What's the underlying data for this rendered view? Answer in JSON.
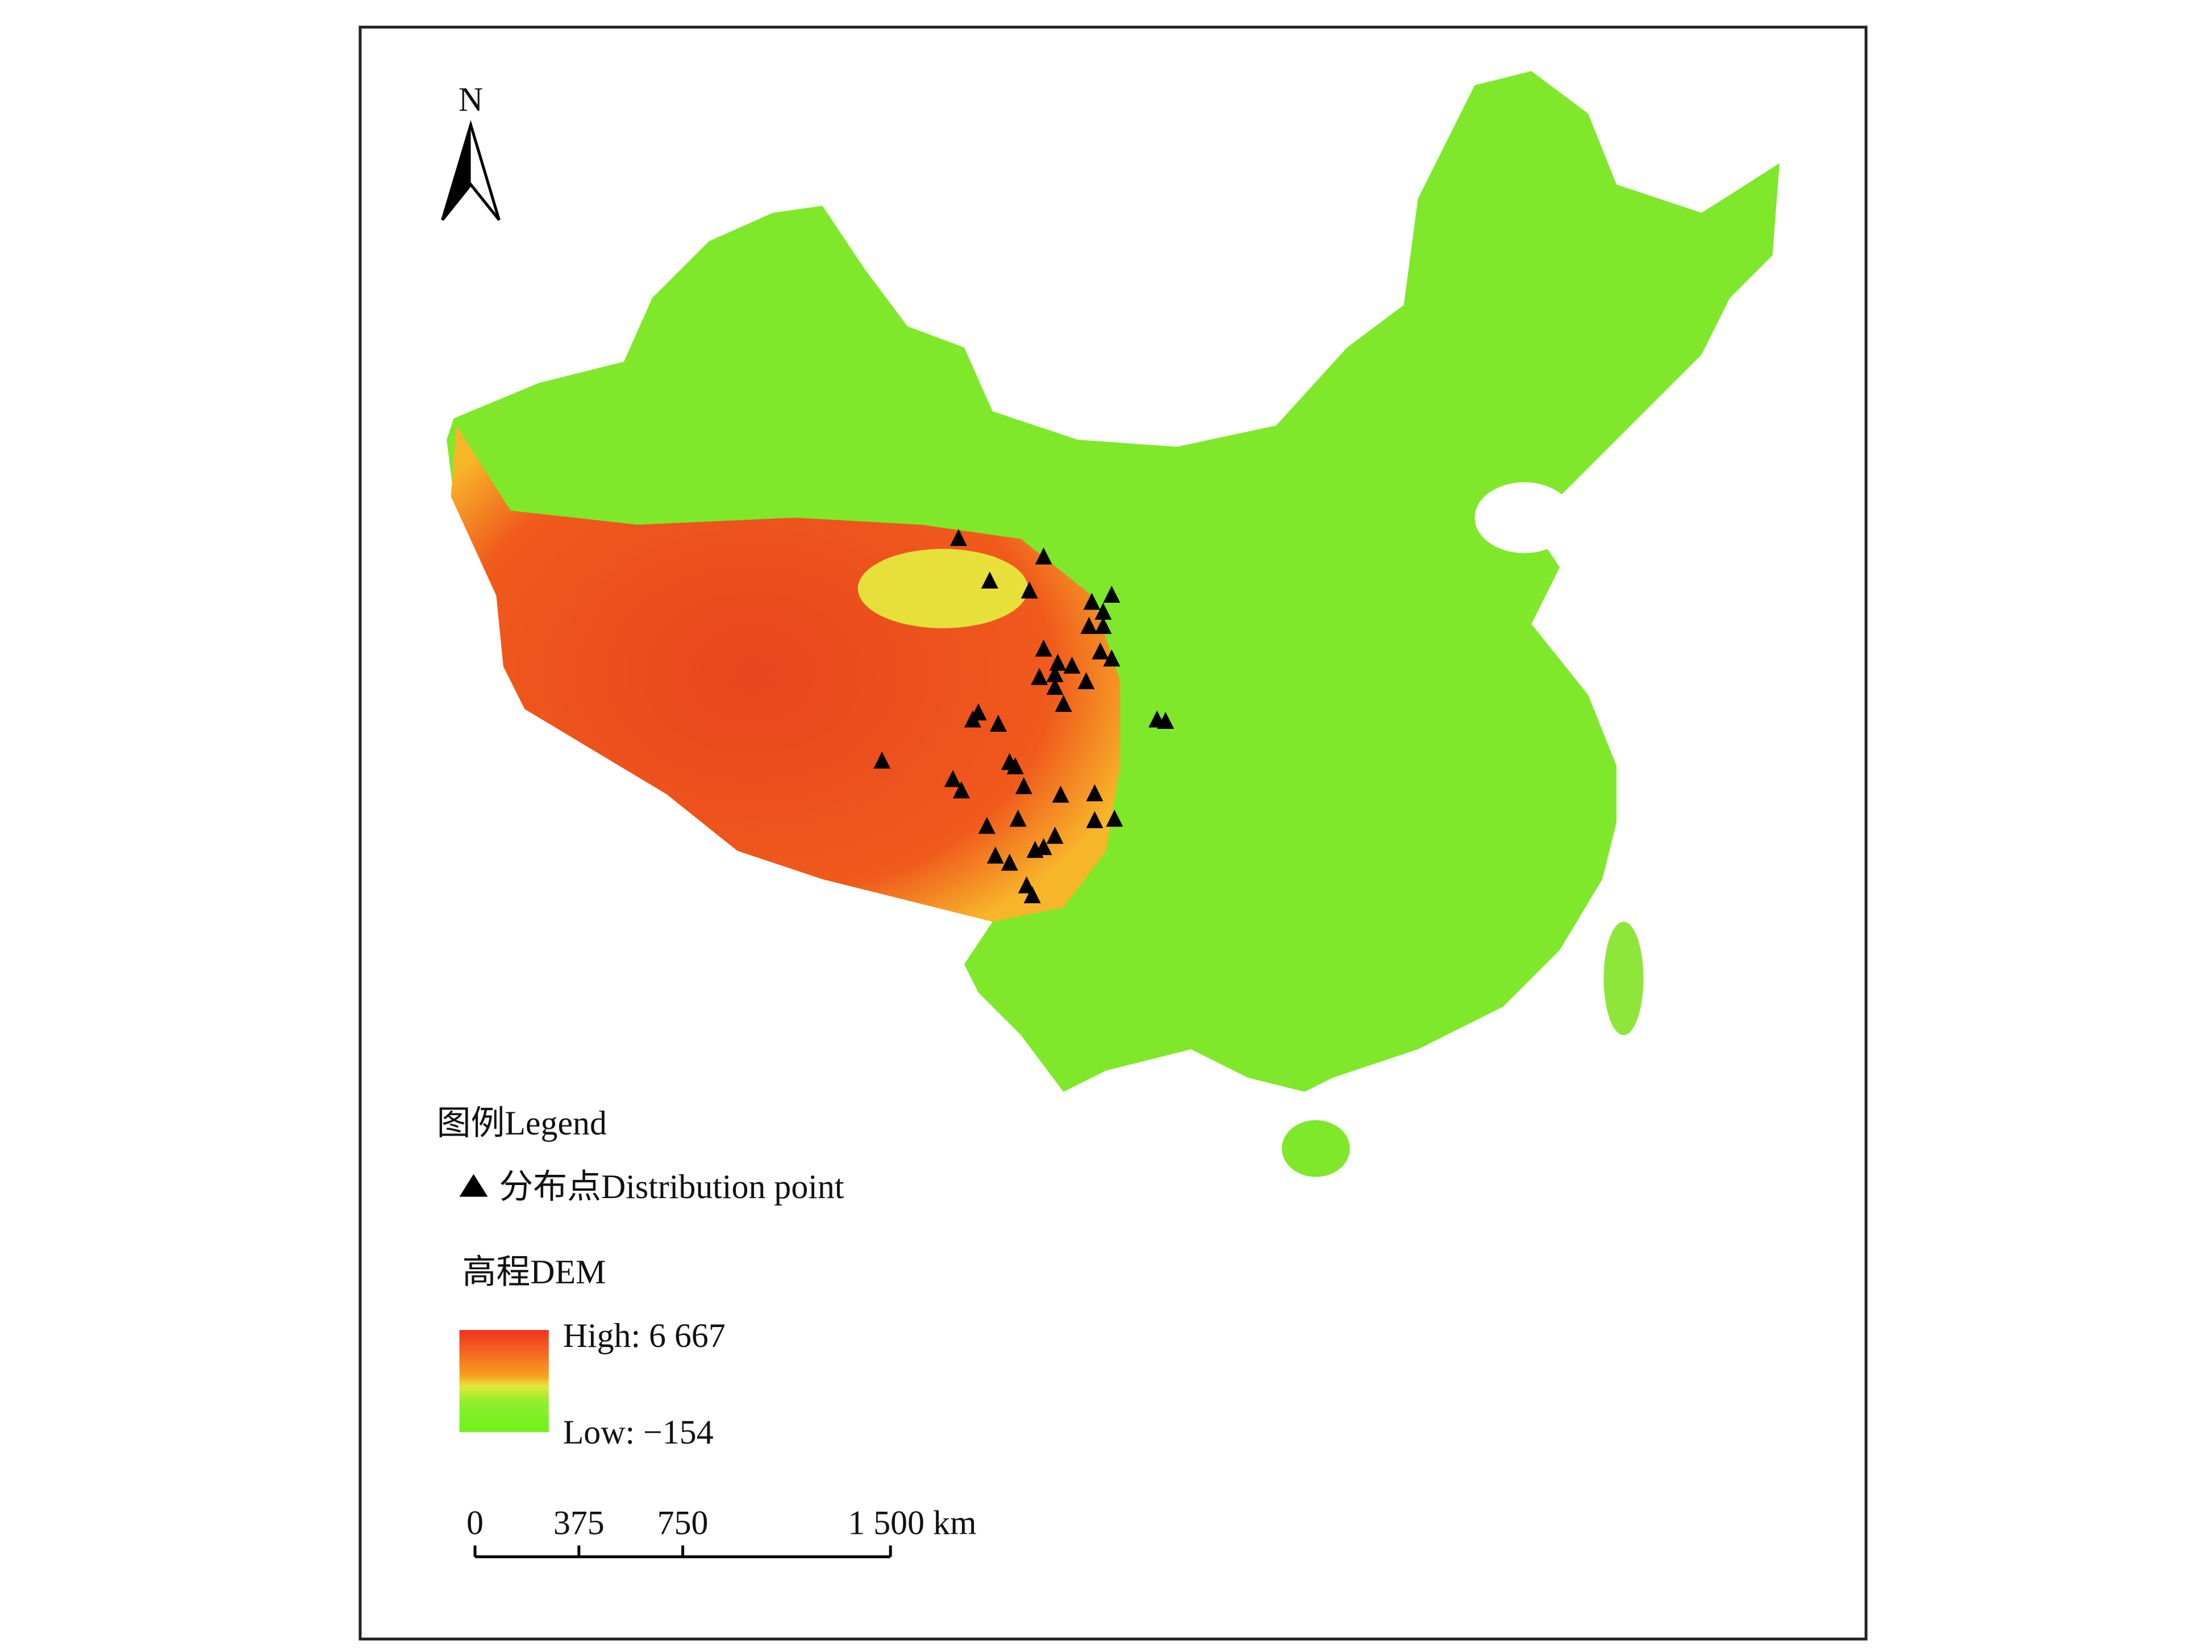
{
  "north_label": "N",
  "legend": {
    "title": "图例Legend",
    "point_label": "分布点Distribution point",
    "dem_title": "高程DEM",
    "high_label": "High: 6 667",
    "low_label": "Low: −154"
  },
  "scale_bar": {
    "ticks": [
      0,
      375,
      750,
      {
        "value": 1500,
        "label": "1 500 km"
      }
    ]
  }
}
